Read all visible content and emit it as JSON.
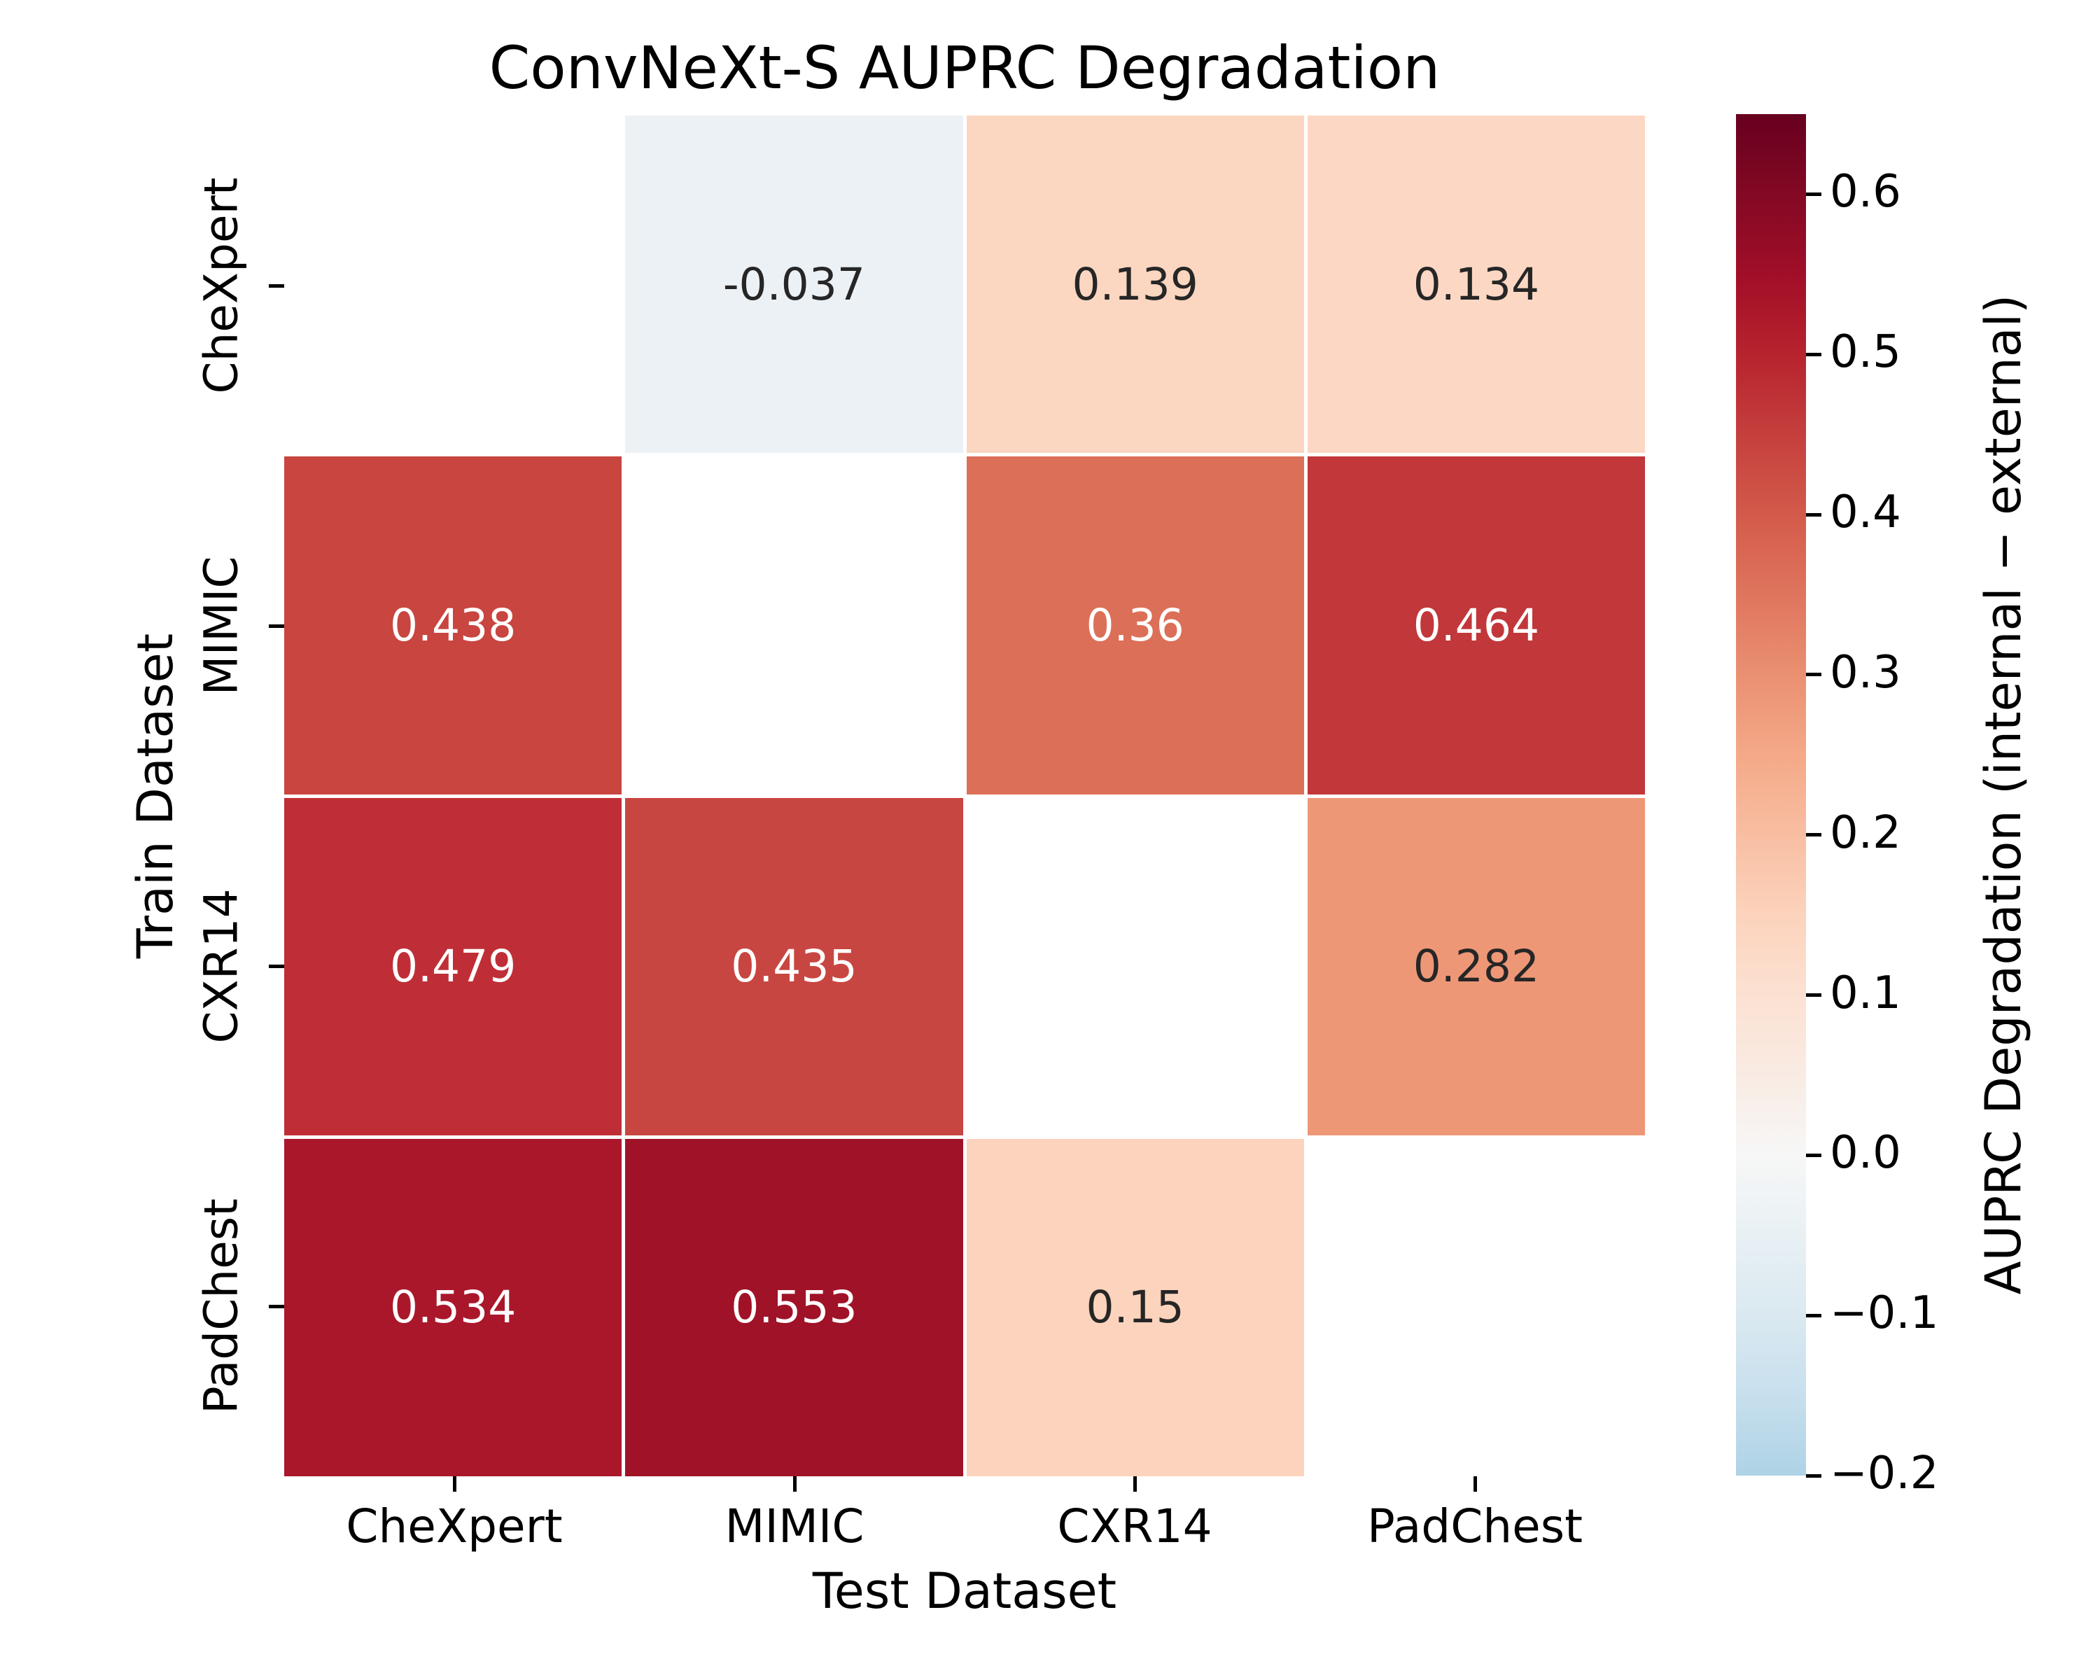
{
  "title": "ConvNeXt-S AUPRC Degradation",
  "x_axis": {
    "label": "Test Dataset",
    "tick_labels": [
      "CheXpert",
      "MIMIC",
      "CXR14",
      "PadChest"
    ]
  },
  "y_axis": {
    "label": "Train Dataset",
    "tick_labels": [
      "CheXpert",
      "MIMIC",
      "CXR14",
      "PadChest"
    ]
  },
  "colorbar": {
    "label": "AUPRC Degradation (internal − external)",
    "range": [
      -0.2,
      0.65
    ],
    "tick_values": [
      0.6,
      0.5,
      0.4,
      0.3,
      0.2,
      0.1,
      0.0,
      -0.1,
      -0.2
    ],
    "tick_labels": [
      "0.6",
      "0.5",
      "0.4",
      "0.3",
      "0.2",
      "0.1",
      "0.0",
      "−0.1",
      "−0.2"
    ],
    "gradient": [
      {
        "v": -0.2,
        "color": "#aed3e6"
      },
      {
        "v": -0.15,
        "color": "#c7dfed"
      },
      {
        "v": -0.1,
        "color": "#dae9f1"
      },
      {
        "v": -0.05,
        "color": "#e8f0f4"
      },
      {
        "v": 0.0,
        "color": "#f7f7f7"
      },
      {
        "v": 0.05,
        "color": "#f9ebe3"
      },
      {
        "v": 0.1,
        "color": "#fce1d2"
      },
      {
        "v": 0.15,
        "color": "#fcd3bc"
      },
      {
        "v": 0.2,
        "color": "#f8bea2"
      },
      {
        "v": 0.25,
        "color": "#f4a987"
      },
      {
        "v": 0.3,
        "color": "#ea9071"
      },
      {
        "v": 0.35,
        "color": "#df755d"
      },
      {
        "v": 0.4,
        "color": "#d35a4a"
      },
      {
        "v": 0.45,
        "color": "#c53f3d"
      },
      {
        "v": 0.5,
        "color": "#b7232d"
      },
      {
        "v": 0.55,
        "color": "#a10e28"
      },
      {
        "v": 0.6,
        "color": "#830924"
      },
      {
        "v": 0.65,
        "color": "#67001f"
      }
    ]
  },
  "chart_data": {
    "type": "heatmap",
    "title": "ConvNeXt-S AUPRC Degradation",
    "xlabel": "Test Dataset",
    "ylabel": "Train Dataset",
    "x_categories": [
      "CheXpert",
      "MIMIC",
      "CXR14",
      "PadChest"
    ],
    "y_categories": [
      "CheXpert",
      "MIMIC",
      "CXR14",
      "PadChest"
    ],
    "values": [
      [
        null,
        -0.037,
        0.139,
        0.134
      ],
      [
        0.438,
        null,
        0.36,
        0.464
      ],
      [
        0.479,
        0.435,
        null,
        0.282
      ],
      [
        0.534,
        0.553,
        0.15,
        null
      ]
    ],
    "cell_labels": [
      [
        "",
        "-0.037",
        "0.139",
        "0.134"
      ],
      [
        "0.438",
        "",
        "0.36",
        "0.464"
      ],
      [
        "0.479",
        "0.435",
        "",
        "0.282"
      ],
      [
        "0.534",
        "0.553",
        "0.15",
        ""
      ]
    ],
    "cell_colors": [
      [
        "#ffffff",
        "#ecf1f5",
        "#fbd6c1",
        "#fcd8c4"
      ],
      [
        "#c84540",
        "#ffffff",
        "#dc6f57",
        "#c1373a"
      ],
      [
        "#bf2e36",
        "#c84641",
        "#ffffff",
        "#ee9777"
      ],
      [
        "#aa172b",
        "#a01228",
        "#fcd3bc",
        "#ffffff"
      ]
    ],
    "text_colors": [
      [
        "",
        "#262626",
        "#262626",
        "#262626"
      ],
      [
        "#ffffff",
        "",
        "#ffffff",
        "#ffffff"
      ],
      [
        "#ffffff",
        "#ffffff",
        "",
        "#262626"
      ],
      [
        "#ffffff",
        "#ffffff",
        "#262626",
        ""
      ]
    ],
    "colormap": "RdBu_r",
    "norm_center": 0,
    "diagonal": "blank",
    "legend_position": "right-colorbar",
    "grid": false
  }
}
